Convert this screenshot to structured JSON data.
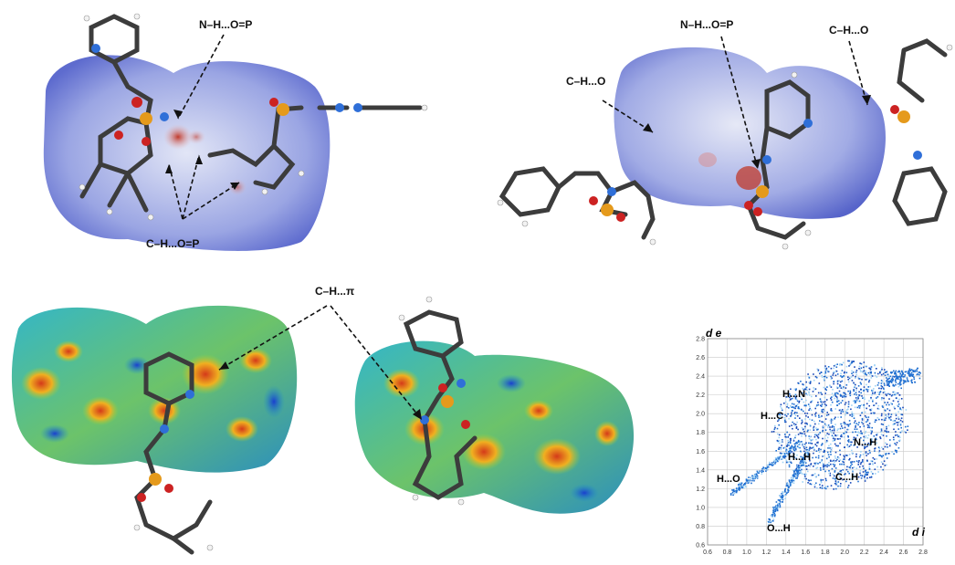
{
  "callouts": {
    "top_left_nh": "N–H...O=P",
    "top_left_ch": "C–H...O=P",
    "top_right_nh": "N–H...O=P",
    "top_right_ch_left": "C–H...O",
    "top_right_ch_right": "C–H...O",
    "bottom_ch_pi": "C–H...π"
  },
  "fingerprint": {
    "y_axis_label": "d e",
    "x_axis_label": "d i",
    "y_ticks": [
      "0.6",
      "0.8",
      "1.0",
      "1.2",
      "1.4",
      "1.6",
      "1.8",
      "2.0",
      "2.2",
      "2.4",
      "2.6",
      "2.8"
    ],
    "x_ticks": [
      "0.6",
      "0.8",
      "1.0",
      "1.2",
      "1.4",
      "1.6",
      "1.8",
      "2.0",
      "2.2",
      "2.4",
      "2.6",
      "2.8"
    ],
    "regions": {
      "h_n": "H...N",
      "h_c": "H...C",
      "h_h": "H...H",
      "n_h": "N...H",
      "c_h": "C...H",
      "h_o": "H...O",
      "o_h": "O...H"
    }
  },
  "colors": {
    "dnorm_surface": "#6f7fd6",
    "shape_index_base": "#3a9a8a",
    "fingerprint_points": "#1f6fd1",
    "carbon": "#3c3c3c",
    "nitrogen": "#2f6fd8",
    "oxygen": "#cc2222",
    "phosphorus": "#e59a1c",
    "hydrogen": "#f2f2f2"
  }
}
